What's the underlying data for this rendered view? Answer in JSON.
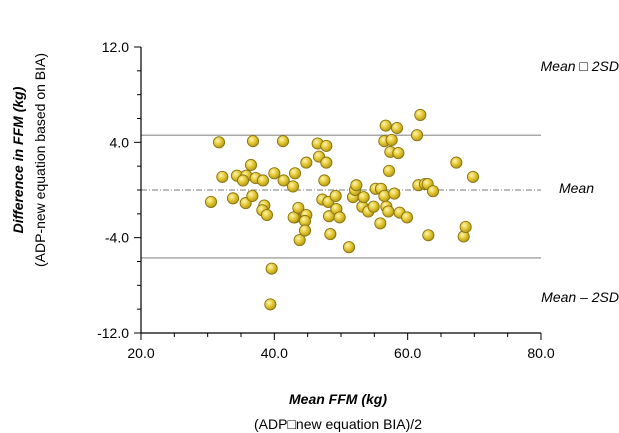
{
  "chart_data": {
    "type": "scatter",
    "xlabel": "Mean FFM (kg)",
    "xlabel_sub": "(ADP□new equation BIA)/2",
    "ylabel": "Difference in FFM  (kg)",
    "ylabel_sub": "(ADP-new equation based on BIA)",
    "xlim": [
      20,
      80
    ],
    "ylim": [
      -12,
      12
    ],
    "x_ticks": [
      "20.0",
      "40.0",
      "60.0",
      "80.0"
    ],
    "y_ticks": [
      "12.0",
      "4.0",
      "-4.0",
      "-12.0"
    ],
    "x_tick_values": [
      20,
      40,
      60,
      80
    ],
    "y_tick_values": [
      12,
      4,
      -4,
      -12
    ],
    "reference_lines": [
      {
        "label": "Mean □ 2SD",
        "y": 4.6
      },
      {
        "label": "Mean",
        "y": 0.0
      },
      {
        "label": "Mean – 2SD",
        "y": -5.7
      }
    ],
    "marker_color": "#e3c630",
    "marker_edge": "#8a7410",
    "points": [
      {
        "x": 30.5,
        "y": -1.0
      },
      {
        "x": 31.7,
        "y": 4.0
      },
      {
        "x": 32.2,
        "y": 1.1
      },
      {
        "x": 33.8,
        "y": -0.7
      },
      {
        "x": 34.4,
        "y": 1.2
      },
      {
        "x": 35.8,
        "y": 1.2
      },
      {
        "x": 35.7,
        "y": -1.1
      },
      {
        "x": 35.3,
        "y": 0.8
      },
      {
        "x": 36.7,
        "y": -0.5
      },
      {
        "x": 36.5,
        "y": 2.1
      },
      {
        "x": 36.8,
        "y": 4.1
      },
      {
        "x": 37.2,
        "y": 1.0
      },
      {
        "x": 38.3,
        "y": 0.8
      },
      {
        "x": 38.5,
        "y": -1.3
      },
      {
        "x": 38.2,
        "y": -1.7
      },
      {
        "x": 38.9,
        "y": -2.1
      },
      {
        "x": 40.0,
        "y": 1.4
      },
      {
        "x": 41.4,
        "y": 0.8
      },
      {
        "x": 41.3,
        "y": 4.1
      },
      {
        "x": 42.8,
        "y": 0.3
      },
      {
        "x": 43.1,
        "y": 1.4
      },
      {
        "x": 43.1,
        "y": -2.3
      },
      {
        "x": 42.9,
        "y": -2.3
      },
      {
        "x": 43.6,
        "y": -1.5
      },
      {
        "x": 43.8,
        "y": -4.2
      },
      {
        "x": 44.8,
        "y": 2.3
      },
      {
        "x": 44.8,
        "y": -2.1
      },
      {
        "x": 44.6,
        "y": -2.6
      },
      {
        "x": 44.6,
        "y": -3.4
      },
      {
        "x": 46.5,
        "y": 3.9
      },
      {
        "x": 46.7,
        "y": 2.8
      },
      {
        "x": 47.2,
        "y": -0.8
      },
      {
        "x": 47.5,
        "y": 0.8
      },
      {
        "x": 47.8,
        "y": 3.7
      },
      {
        "x": 47.8,
        "y": 2.3
      },
      {
        "x": 48.1,
        "y": -1.0
      },
      {
        "x": 48.2,
        "y": -2.2
      },
      {
        "x": 48.4,
        "y": -3.7
      },
      {
        "x": 49.2,
        "y": -0.5
      },
      {
        "x": 49.3,
        "y": -1.6
      },
      {
        "x": 49.8,
        "y": -2.3
      },
      {
        "x": 51.2,
        "y": -4.8
      },
      {
        "x": 51.8,
        "y": -0.6
      },
      {
        "x": 52.1,
        "y": 0.0
      },
      {
        "x": 52.3,
        "y": 0.4
      },
      {
        "x": 53.2,
        "y": -1.4
      },
      {
        "x": 53.4,
        "y": -0.6
      },
      {
        "x": 54.1,
        "y": -1.8
      },
      {
        "x": 54.9,
        "y": -1.4
      },
      {
        "x": 55.2,
        "y": 0.1
      },
      {
        "x": 55.9,
        "y": -2.8
      },
      {
        "x": 56.0,
        "y": 0.1
      },
      {
        "x": 56.5,
        "y": -0.5
      },
      {
        "x": 56.5,
        "y": 4.1
      },
      {
        "x": 56.7,
        "y": 5.4
      },
      {
        "x": 56.8,
        "y": -1.4
      },
      {
        "x": 57.1,
        "y": -1.8
      },
      {
        "x": 57.2,
        "y": 1.6
      },
      {
        "x": 57.4,
        "y": 3.2
      },
      {
        "x": 57.6,
        "y": 4.2
      },
      {
        "x": 58.0,
        "y": -0.3
      },
      {
        "x": 58.4,
        "y": 5.2
      },
      {
        "x": 58.6,
        "y": 3.1
      },
      {
        "x": 58.8,
        "y": -1.9
      },
      {
        "x": 59.9,
        "y": -2.3
      },
      {
        "x": 61.4,
        "y": 4.6
      },
      {
        "x": 61.6,
        "y": 0.4
      },
      {
        "x": 61.9,
        "y": 6.3
      },
      {
        "x": 62.6,
        "y": 0.5
      },
      {
        "x": 63.0,
        "y": 0.5
      },
      {
        "x": 63.1,
        "y": -3.8
      },
      {
        "x": 63.8,
        "y": -0.1
      },
      {
        "x": 67.3,
        "y": 2.3
      },
      {
        "x": 68.4,
        "y": -3.9
      },
      {
        "x": 68.7,
        "y": -3.1
      },
      {
        "x": 69.8,
        "y": 1.1
      },
      {
        "x": 39.6,
        "y": -6.6
      },
      {
        "x": 39.4,
        "y": -9.6
      }
    ]
  }
}
